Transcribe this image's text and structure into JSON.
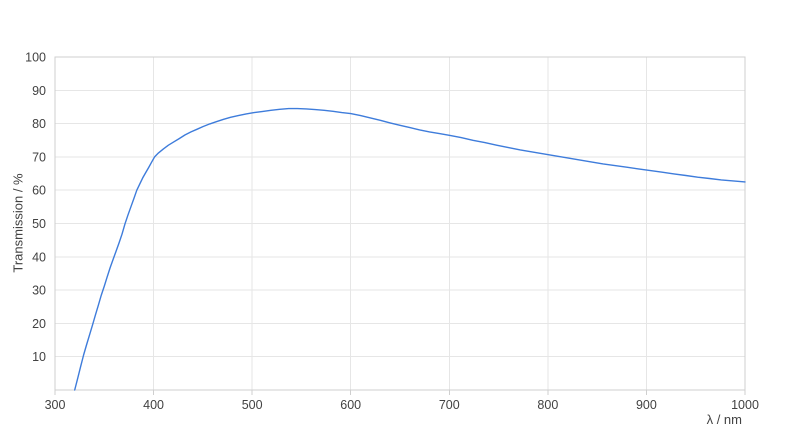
{
  "chart_data": {
    "type": "line",
    "title": "",
    "xlabel": "λ / nm",
    "ylabel": "Transmission / %",
    "xlim": [
      300,
      1000
    ],
    "ylim": [
      0,
      100
    ],
    "x_ticks": [
      300,
      400,
      500,
      600,
      700,
      800,
      900,
      1000
    ],
    "y_ticks": [
      10,
      20,
      30,
      40,
      50,
      60,
      70,
      80,
      90,
      100
    ],
    "grid": true,
    "legend_position": "none",
    "colors": {
      "line": "#3e7cdb",
      "grid": "#e6e6e6",
      "border": "#cfcfcf",
      "tick": "#cfcfcf",
      "text": "#424242",
      "background": "#ffffff"
    },
    "series": [
      {
        "name": "Transmission",
        "color": "#3e7cdb",
        "points": [
          [
            320,
            0
          ],
          [
            323,
            3.5
          ],
          [
            326,
            7
          ],
          [
            329,
            10.5
          ],
          [
            332,
            13.5
          ],
          [
            335,
            16.5
          ],
          [
            338,
            19.5
          ],
          [
            341,
            22.5
          ],
          [
            344,
            25.5
          ],
          [
            347,
            28.5
          ],
          [
            350,
            31.2
          ],
          [
            353,
            34
          ],
          [
            356,
            36.8
          ],
          [
            359,
            39.3
          ],
          [
            362,
            41.7
          ],
          [
            365,
            44.2
          ],
          [
            368,
            46.8
          ],
          [
            371,
            49.9
          ],
          [
            374,
            52.5
          ],
          [
            377,
            55
          ],
          [
            380,
            57.5
          ],
          [
            383,
            60
          ],
          [
            386,
            61.9
          ],
          [
            389,
            63.7
          ],
          [
            392,
            65.3
          ],
          [
            395,
            66.8
          ],
          [
            398,
            68.4
          ],
          [
            401,
            70
          ],
          [
            405,
            71.2
          ],
          [
            410,
            72.4
          ],
          [
            415,
            73.5
          ],
          [
            420,
            74.4
          ],
          [
            426,
            75.5
          ],
          [
            432,
            76.6
          ],
          [
            438,
            77.5
          ],
          [
            444,
            78.3
          ],
          [
            450,
            79.1
          ],
          [
            457,
            79.9
          ],
          [
            464,
            80.6
          ],
          [
            471,
            81.3
          ],
          [
            478,
            81.9
          ],
          [
            486,
            82.4
          ],
          [
            494,
            82.9
          ],
          [
            502,
            83.3
          ],
          [
            510,
            83.6
          ],
          [
            519,
            84
          ],
          [
            528,
            84.3
          ],
          [
            537,
            84.5
          ],
          [
            546,
            84.5
          ],
          [
            555,
            84.4
          ],
          [
            564,
            84.2
          ],
          [
            573,
            84
          ],
          [
            582,
            83.7
          ],
          [
            591,
            83.3
          ],
          [
            600,
            83
          ],
          [
            610,
            82.4
          ],
          [
            620,
            81.7
          ],
          [
            630,
            81
          ],
          [
            640,
            80.2
          ],
          [
            650,
            79.5
          ],
          [
            660,
            78.8
          ],
          [
            670,
            78.1
          ],
          [
            680,
            77.5
          ],
          [
            690,
            77
          ],
          [
            700,
            76.5
          ],
          [
            712,
            75.8
          ],
          [
            724,
            75
          ],
          [
            736,
            74.3
          ],
          [
            748,
            73.5
          ],
          [
            760,
            72.8
          ],
          [
            772,
            72.1
          ],
          [
            784,
            71.5
          ],
          [
            796,
            70.9
          ],
          [
            808,
            70.3
          ],
          [
            820,
            69.7
          ],
          [
            832,
            69.1
          ],
          [
            844,
            68.5
          ],
          [
            856,
            67.9
          ],
          [
            868,
            67.4
          ],
          [
            880,
            66.9
          ],
          [
            892,
            66.4
          ],
          [
            904,
            65.9
          ],
          [
            916,
            65.4
          ],
          [
            928,
            64.9
          ],
          [
            940,
            64.4
          ],
          [
            952,
            63.9
          ],
          [
            964,
            63.5
          ],
          [
            976,
            63.1
          ],
          [
            988,
            62.8
          ],
          [
            1000,
            62.5
          ]
        ]
      }
    ]
  }
}
